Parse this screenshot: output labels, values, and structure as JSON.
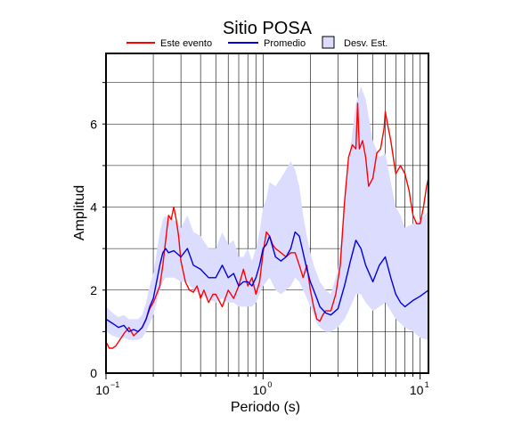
{
  "chart_data": {
    "type": "line",
    "title": "Sitio POSA",
    "xlabel": "Periodo (s)",
    "ylabel": "Amplitud",
    "xscale": "log",
    "xlim": [
      0.1,
      11.3
    ],
    "ylim": [
      0,
      7.7
    ],
    "grid": true,
    "legend": {
      "placement": "top"
    },
    "x_ticks": [
      {
        "value": 0.1,
        "base": "10",
        "exp": "−1"
      },
      {
        "value": 1,
        "base": "10",
        "exp": "0"
      },
      {
        "value": 10,
        "base": "10",
        "exp": "1"
      }
    ],
    "y_ticks": [
      0,
      2,
      4,
      6
    ],
    "series": [
      {
        "name": "Este evento",
        "color": "#ff0000",
        "role": "line",
        "x": [
          0.1,
          0.105,
          0.11,
          0.115,
          0.12,
          0.13,
          0.14,
          0.15,
          0.16,
          0.17,
          0.18,
          0.19,
          0.2,
          0.21,
          0.22,
          0.23,
          0.24,
          0.25,
          0.26,
          0.27,
          0.28,
          0.29,
          0.3,
          0.32,
          0.34,
          0.36,
          0.38,
          0.4,
          0.42,
          0.45,
          0.48,
          0.5,
          0.55,
          0.6,
          0.65,
          0.7,
          0.75,
          0.8,
          0.85,
          0.9,
          0.95,
          1.0,
          1.05,
          1.1,
          1.15,
          1.2,
          1.3,
          1.4,
          1.5,
          1.6,
          1.7,
          1.8,
          1.9,
          2.0,
          2.1,
          2.2,
          2.3,
          2.4,
          2.5,
          2.7,
          2.9,
          3.1,
          3.3,
          3.5,
          3.7,
          3.9,
          4.0,
          4.1,
          4.3,
          4.5,
          4.7,
          5.0,
          5.3,
          5.6,
          5.9,
          6.0,
          6.2,
          6.5,
          7.0,
          7.5,
          8.0,
          8.5,
          9.0,
          9.5,
          10.0,
          10.5,
          11.0,
          11.3
        ],
        "y": [
          0.75,
          0.6,
          0.6,
          0.65,
          0.75,
          0.95,
          1.1,
          0.9,
          1.0,
          1.1,
          1.3,
          1.55,
          1.7,
          1.9,
          2.1,
          2.6,
          3.2,
          3.8,
          3.7,
          4.0,
          3.7,
          3.3,
          2.7,
          2.2,
          2.0,
          1.95,
          2.1,
          1.8,
          2.0,
          1.7,
          1.9,
          1.9,
          1.6,
          2.0,
          1.8,
          2.1,
          2.5,
          2.1,
          2.3,
          1.9,
          2.2,
          2.9,
          3.4,
          3.3,
          3.1,
          3.0,
          2.9,
          2.8,
          2.9,
          2.9,
          2.6,
          2.3,
          2.6,
          2.0,
          1.6,
          1.3,
          1.25,
          1.4,
          1.5,
          1.5,
          1.9,
          2.6,
          4.1,
          5.2,
          5.5,
          5.4,
          6.5,
          5.4,
          5.6,
          5.2,
          4.5,
          4.7,
          5.3,
          5.4,
          5.9,
          6.3,
          6.0,
          5.6,
          4.8,
          5.0,
          4.8,
          4.4,
          3.8,
          3.6,
          3.6,
          4.0,
          4.5,
          4.7
        ]
      },
      {
        "name": "Promedio",
        "color": "#0000dd",
        "role": "line",
        "x": [
          0.1,
          0.11,
          0.12,
          0.13,
          0.14,
          0.15,
          0.16,
          0.17,
          0.18,
          0.19,
          0.2,
          0.21,
          0.22,
          0.23,
          0.24,
          0.25,
          0.27,
          0.3,
          0.33,
          0.36,
          0.4,
          0.45,
          0.5,
          0.55,
          0.6,
          0.65,
          0.7,
          0.75,
          0.8,
          0.85,
          0.9,
          0.95,
          1.0,
          1.05,
          1.1,
          1.2,
          1.3,
          1.4,
          1.5,
          1.6,
          1.7,
          1.8,
          1.9,
          2.0,
          2.1,
          2.2,
          2.3,
          2.5,
          2.7,
          3.0,
          3.3,
          3.6,
          3.9,
          4.2,
          4.5,
          5.0,
          5.5,
          6.0,
          6.5,
          7.0,
          7.5,
          8.0,
          9.0,
          10.0,
          11.3
        ],
        "y": [
          1.3,
          1.2,
          1.1,
          1.15,
          1.0,
          1.05,
          1.0,
          1.1,
          1.3,
          1.6,
          1.8,
          2.2,
          2.6,
          2.9,
          3.0,
          2.9,
          2.95,
          2.8,
          3.0,
          2.6,
          2.5,
          2.3,
          2.3,
          2.6,
          2.3,
          2.4,
          2.1,
          2.2,
          2.2,
          2.1,
          2.3,
          2.6,
          3.0,
          3.1,
          3.3,
          2.8,
          2.7,
          2.8,
          3.0,
          3.4,
          3.3,
          2.9,
          2.5,
          2.2,
          2.0,
          1.8,
          1.6,
          1.45,
          1.4,
          1.55,
          2.1,
          2.7,
          3.2,
          3.0,
          2.6,
          2.2,
          2.6,
          2.8,
          2.3,
          1.9,
          1.7,
          1.6,
          1.75,
          1.85,
          2.0
        ]
      },
      {
        "name": "Desv. Est.",
        "color": "#dcdcff",
        "role": "band",
        "x": [
          0.1,
          0.11,
          0.12,
          0.13,
          0.14,
          0.15,
          0.16,
          0.17,
          0.18,
          0.19,
          0.2,
          0.21,
          0.22,
          0.23,
          0.24,
          0.25,
          0.27,
          0.3,
          0.33,
          0.36,
          0.4,
          0.45,
          0.5,
          0.55,
          0.6,
          0.65,
          0.7,
          0.75,
          0.8,
          0.85,
          0.9,
          0.95,
          1.0,
          1.05,
          1.1,
          1.2,
          1.3,
          1.4,
          1.5,
          1.6,
          1.7,
          1.8,
          1.9,
          2.0,
          2.1,
          2.2,
          2.3,
          2.5,
          2.7,
          3.0,
          3.3,
          3.6,
          3.9,
          4.2,
          4.5,
          5.0,
          5.5,
          6.0,
          6.5,
          7.0,
          7.5,
          8.0,
          9.0,
          10.0,
          11.3
        ],
        "lower": [
          1.0,
          0.9,
          0.85,
          0.85,
          0.8,
          0.8,
          0.8,
          0.85,
          1.0,
          1.2,
          1.4,
          1.7,
          2.0,
          2.2,
          2.3,
          2.3,
          2.3,
          2.2,
          2.2,
          2.0,
          1.9,
          1.8,
          1.7,
          1.8,
          1.7,
          1.7,
          1.6,
          1.6,
          1.6,
          1.6,
          1.7,
          1.9,
          2.1,
          2.2,
          2.3,
          2.0,
          1.9,
          2.0,
          2.1,
          2.3,
          2.2,
          2.0,
          1.8,
          1.6,
          1.4,
          1.2,
          1.1,
          1.0,
          1.0,
          1.1,
          1.3,
          1.6,
          1.9,
          1.9,
          1.7,
          1.5,
          1.6,
          1.7,
          1.5,
          1.3,
          1.2,
          1.1,
          1.0,
          0.85,
          0.8
        ],
        "upper": [
          1.6,
          1.45,
          1.35,
          1.4,
          1.3,
          1.3,
          1.3,
          1.4,
          1.7,
          2.1,
          2.4,
          2.9,
          3.4,
          3.7,
          3.8,
          3.7,
          3.7,
          3.5,
          3.8,
          3.4,
          3.3,
          3.0,
          3.0,
          3.4,
          3.1,
          3.2,
          2.8,
          2.8,
          3.0,
          2.7,
          3.0,
          3.4,
          4.0,
          4.2,
          4.6,
          4.5,
          4.7,
          4.9,
          5.1,
          4.9,
          4.5,
          3.8,
          3.3,
          2.9,
          2.6,
          2.4,
          2.2,
          2.0,
          1.9,
          2.5,
          4.0,
          5.4,
          6.5,
          6.9,
          6.6,
          5.6,
          5.2,
          5.3,
          4.6,
          4.0,
          3.8,
          3.5,
          3.6,
          3.7,
          3.9
        ]
      }
    ]
  }
}
